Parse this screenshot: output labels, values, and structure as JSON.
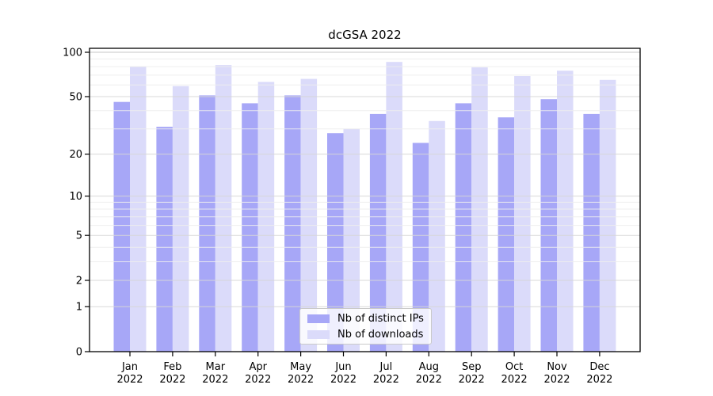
{
  "title": "dcGSA 2022",
  "chart_data": {
    "type": "bar",
    "title": "dcGSA 2022",
    "scale": "log1p (log-like axis of value+1, linear at 0)",
    "xlabel": "",
    "ylabel": "",
    "year": "2022",
    "months": [
      "Jan",
      "Feb",
      "Mar",
      "Apr",
      "May",
      "Jun",
      "Jul",
      "Aug",
      "Sep",
      "Oct",
      "Nov",
      "Dec"
    ],
    "categories": [
      "Jan 2022",
      "Feb 2022",
      "Mar 2022",
      "Apr 2022",
      "May 2022",
      "Jun 2022",
      "Jul 2022",
      "Aug 2022",
      "Sep 2022",
      "Oct 2022",
      "Nov 2022",
      "Dec 2022"
    ],
    "series": [
      {
        "name": "Nb of distinct IPs",
        "color": "#a7a7f7",
        "values": [
          46,
          31,
          51,
          45,
          51,
          28,
          38,
          24,
          45,
          36,
          48,
          38
        ]
      },
      {
        "name": "Nb of downloads",
        "color": "#dbdbfa",
        "values": [
          80,
          59,
          82,
          63,
          66,
          30,
          86,
          34,
          79,
          69,
          75,
          65
        ]
      }
    ],
    "yticks": [
      0,
      1,
      2,
      5,
      10,
      20,
      50,
      100
    ],
    "minor_yticks": [
      3,
      4,
      6,
      7,
      8,
      9,
      30,
      40,
      60,
      70,
      80,
      90
    ],
    "ylim": [
      0,
      107
    ],
    "grid": "major and minor horizontal gridlines drawn over bars",
    "legend_position": "bottom center inside plot",
    "colors": {
      "grid_major": "#d6d6d6",
      "grid_top": "#c4c4c4",
      "grid_minor": "#ededed",
      "spine": "#000000",
      "text": "#000000"
    }
  }
}
